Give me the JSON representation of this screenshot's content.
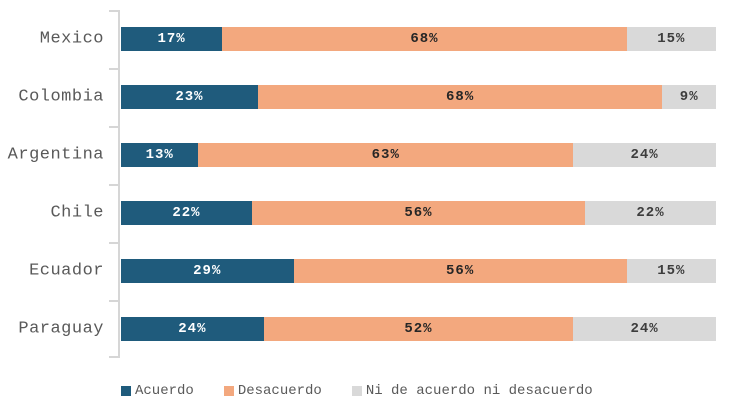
{
  "chart_data": {
    "type": "bar",
    "variant": "horizontal_stacked",
    "title": "",
    "xlabel": "",
    "ylabel": "",
    "xlim": [
      0,
      100
    ],
    "value_suffix": "%",
    "grid": false,
    "legend_position": "bottom",
    "categories": [
      "Mexico",
      "Colombia",
      "Argentina",
      "Chile",
      "Ecuador",
      "Paraguay"
    ],
    "series": [
      {
        "name": "Acuerdo",
        "color": "#1f5b7c",
        "label_color": "#ffffff",
        "values": [
          17,
          23,
          13,
          22,
          29,
          24
        ]
      },
      {
        "name": "Desacuerdo",
        "color": "#f3a87e",
        "label_color": "#262626",
        "values": [
          68,
          68,
          63,
          56,
          56,
          52
        ]
      },
      {
        "name": "Ni de acuerdo ni desacuerdo",
        "color": "#d9d9d9",
        "label_color": "#3d3d3d",
        "values": [
          15,
          9,
          24,
          22,
          15,
          24
        ]
      }
    ],
    "colors": {
      "axis": "#d6d6d6",
      "category_label": "#595959",
      "legend_label": "#595959",
      "background": "#ffffff"
    }
  }
}
